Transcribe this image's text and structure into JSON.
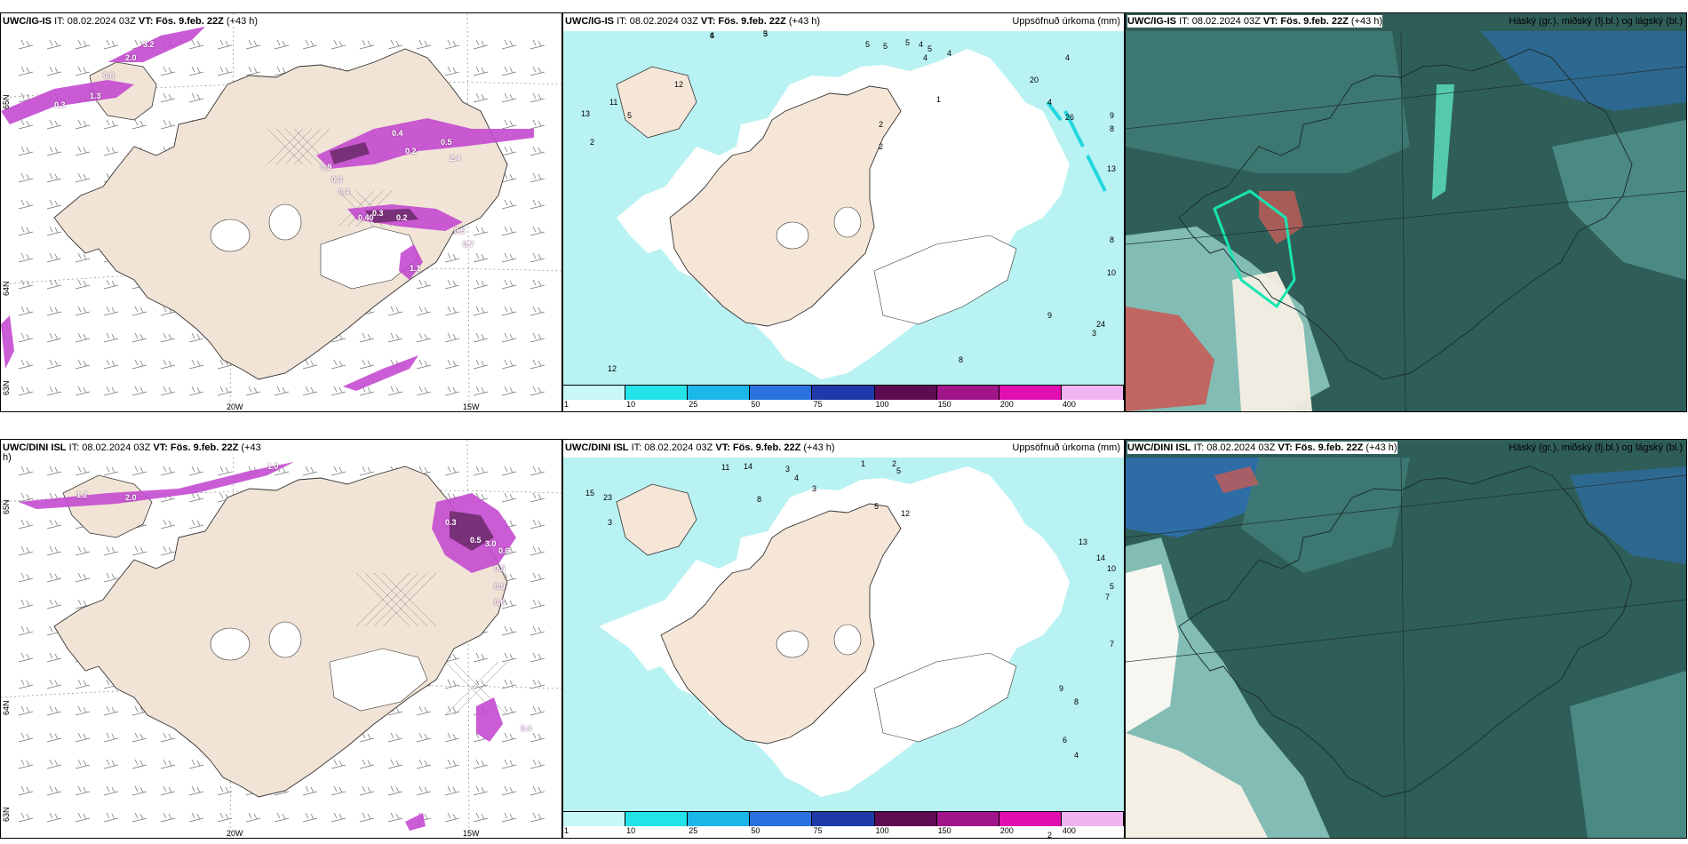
{
  "colors": {
    "land": "#f1e4d6",
    "precip_light": "#b9f2f2",
    "precip_cyan": "#22e0e6",
    "precip_magenta": "#c44bd0",
    "precip_dark": "#6b2a6a",
    "cloud_dark": "#2f5e59",
    "cloud_mid": "#4f8f88",
    "cloud_light": "#8cc7bf",
    "blue_band": "#2d6fb8"
  },
  "panels": [
    {
      "id": "top-left",
      "header_model": "UWC/IG-IS",
      "header_it": "IT: 08.02.2024 03Z",
      "header_vt": "VT: Fös. 9.feb. 22Z",
      "header_lead": "(+43 h)",
      "right_title": "",
      "lon_labels": [
        "20W",
        "15W"
      ],
      "lat_labels": [
        "65N",
        "64N",
        "63N"
      ],
      "values": [
        "3.2",
        "2.0",
        "0.8",
        "1.3",
        "0.3",
        "0.4",
        "0.2",
        "0.5",
        "2.4",
        "0.9",
        "0.3",
        "0.4",
        "0.40",
        "0.3",
        "0.2",
        "0.5",
        "0.7",
        "1.1"
      ]
    },
    {
      "id": "top-mid",
      "header_model": "UWC/IG-IS",
      "header_it": "IT: 08.02.2024 03Z",
      "header_vt": "VT: Fös. 9.feb. 22Z",
      "header_lead": "(+43 h)",
      "right_title": "Uppsöfnuð úrkoma (mm)",
      "values": [
        "6",
        "5",
        "5",
        "5",
        "5",
        "4",
        "4",
        "5",
        "4",
        "1",
        "12",
        "11",
        "13",
        "5",
        "2",
        "2",
        "20",
        "4",
        "26",
        "4",
        "9",
        "8",
        "13",
        "2",
        "8",
        "12",
        "24",
        "3",
        "10",
        "9",
        "8",
        "4",
        "3"
      ]
    },
    {
      "id": "top-right",
      "header_model": "UWC/IG-IS",
      "header_it": "IT: 08.02.2024 03Z",
      "header_vt": "VT: Fös. 9.feb. 22Z",
      "header_lead": "(+43 h)",
      "right_title": "Háský (gr.), miðský (fj.bl.) og lágský (bl.)"
    },
    {
      "id": "bottom-left",
      "header_model": "UWC/DINI ISL",
      "header_it": "IT: 08.02.2024 03Z",
      "header_vt": "VT: Fös. 9.feb. 22Z",
      "header_lead": "(+43",
      "header_wrap": "h)",
      "right_title": "",
      "lon_labels": [
        "20W",
        "15W"
      ],
      "lat_labels": [
        "65N",
        "64N",
        "63N"
      ],
      "values": [
        "1.0",
        "1.2",
        "2.0",
        "0.3",
        "0.5",
        "3.0",
        "0.6",
        "0.5",
        "0.9",
        "0.6",
        "0.4"
      ]
    },
    {
      "id": "bottom-mid",
      "header_model": "UWC/DINI ISL",
      "header_it": "IT: 08.02.2024 03Z",
      "header_vt": "VT: Fös. 9.feb. 22Z",
      "header_lead": "(+43 h)",
      "right_title": "Uppsöfnuð úrkoma (mm)",
      "values": [
        "11",
        "14",
        "3",
        "4",
        "8",
        "1",
        "2",
        "5",
        "3",
        "15",
        "23",
        "3",
        "5",
        "12",
        "13",
        "14",
        "10",
        "5",
        "7",
        "7",
        "8",
        "9",
        "6",
        "4",
        "2",
        "2"
      ]
    },
    {
      "id": "bottom-right",
      "header_model": "UWC/DINI ISL",
      "header_it": "IT: 08.02.2024 03Z",
      "header_vt": "VT: Fös. 9.feb. 22Z",
      "header_lead": "(+43 h)",
      "right_title": "Háský (gr.), miðský (fj.bl.) og lágský (bl.)"
    }
  ],
  "colorbar": {
    "labels": [
      "1",
      "10",
      "25",
      "50",
      "75",
      "100",
      "150",
      "200",
      "400"
    ],
    "colors": [
      "#c8f7f7",
      "#22e3e8",
      "#1bb7e8",
      "#2a72e0",
      "#1e3aa8",
      "#5e0b52",
      "#a0168a",
      "#e20fb0",
      "#f1b4f1"
    ]
  }
}
